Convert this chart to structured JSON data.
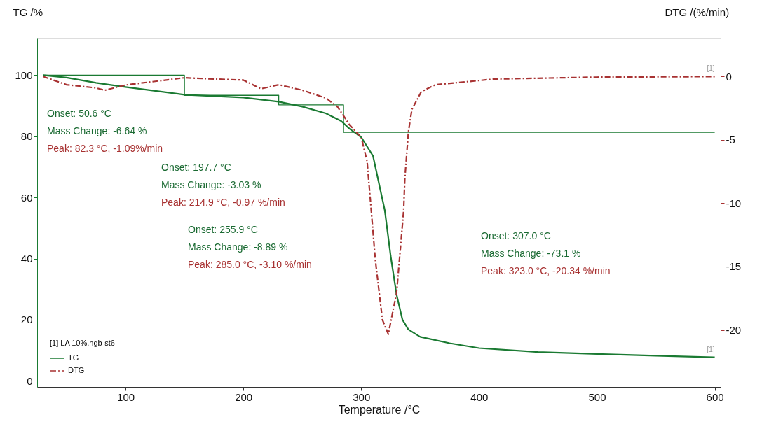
{
  "chart_data": {
    "type": "line",
    "xlabel": "Temperature /°C",
    "ylabel": "TG /%",
    "y2label": "DTG /(%/min)",
    "legend_title": "[1] LA 10%.ngb-st6",
    "legend": "bottom left",
    "grid": false,
    "marker": "none",
    "xlim": [
      25,
      605
    ],
    "xticks": [
      100,
      200,
      300,
      400,
      500,
      600
    ],
    "ylim": [
      -2,
      112
    ],
    "yticks": [
      0,
      20,
      40,
      60,
      80,
      100
    ],
    "y2lim": [
      -24.5,
      3
    ],
    "y2ticks": [
      0,
      -5,
      -10,
      -15,
      -20
    ],
    "series": [
      {
        "name": "TG",
        "color": "#1a7a32",
        "line_style": "solid",
        "x": [
          30,
          50,
          75,
          100,
          150,
          200,
          230,
          250,
          270,
          283,
          290,
          300,
          310,
          320,
          325,
          330,
          335,
          340,
          350,
          375,
          400,
          450,
          500,
          550,
          600
        ],
        "values": [
          100,
          99.2,
          97.5,
          96.1,
          93.6,
          92.7,
          91.3,
          89.7,
          87.5,
          85,
          82.5,
          79.7,
          73.6,
          55.8,
          40.8,
          28.2,
          20,
          16.8,
          14.4,
          12.3,
          10.7,
          9.4,
          8.8,
          8.2,
          7.7
        ]
      },
      {
        "name": "DTG",
        "color": "#a83232",
        "line_style": "dashed",
        "axis": "y2",
        "x": [
          30,
          50,
          75,
          82.3,
          100,
          150,
          175,
          200,
          214.9,
          230,
          250,
          270,
          280,
          285,
          290,
          300,
          305,
          308,
          312,
          318,
          323,
          325,
          330,
          336,
          337,
          340,
          343,
          351,
          363,
          413,
          500,
          600
        ],
        "values": [
          0,
          -0.65,
          -0.9,
          -1.09,
          -0.67,
          -0.1,
          -0.2,
          -0.28,
          -0.97,
          -0.65,
          -1.08,
          -1.7,
          -2.4,
          -3.1,
          -3.8,
          -4.8,
          -6.7,
          -10,
          -14.5,
          -19.2,
          -20.34,
          -19.4,
          -17.1,
          -10.6,
          -8.1,
          -4.4,
          -2.6,
          -1.2,
          -0.65,
          -0.2,
          -0.05,
          0
        ]
      },
      {
        "type": "line",
        "color": "#1a7a32",
        "line_style": "solid",
        "x": [
          30,
          150,
          150,
          230,
          230,
          285,
          285,
          600
        ],
        "values": [
          100,
          100,
          93.4,
          93.4,
          90.3,
          90.3,
          81.3,
          81.3
        ]
      }
    ],
    "annotations": [
      "Onset: 50.6 °C",
      "Mass Change: -6.64 %",
      "Peak: 82.3 °C, -1.09%/min",
      "Onset: 197.7 °C",
      "Mass Change: -3.03 %",
      "Peak: 214.9 °C, -0.97 %/min",
      "Onset: 255.9 °C",
      "Mass Change: -8.89 %",
      "Peak: 285.0 °C, -3.10 %/min",
      "Onset: 307.0 °C",
      "Mass Change: -73.1 %",
      "Peak: 323.0 °C, -20.34 %/min",
      "[1]",
      "[1]"
    ]
  }
}
